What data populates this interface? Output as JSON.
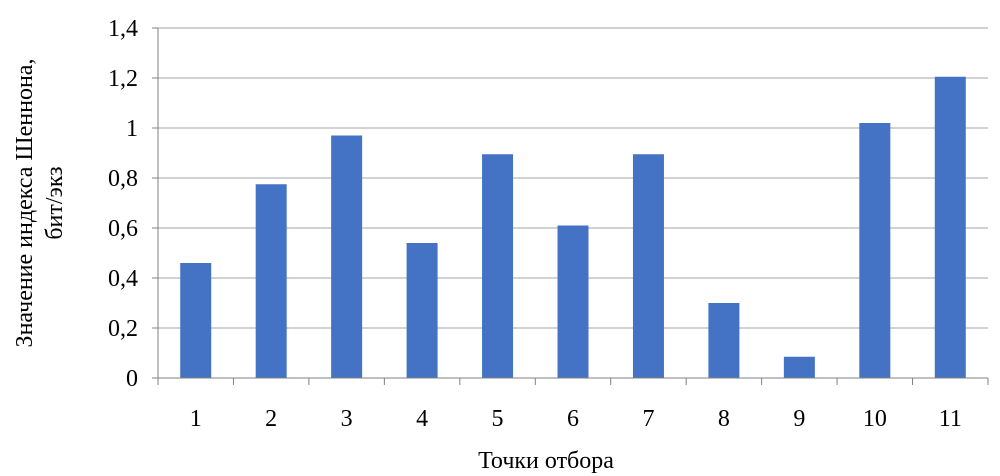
{
  "chart_data": {
    "type": "bar",
    "categories": [
      "1",
      "2",
      "3",
      "4",
      "5",
      "6",
      "7",
      "8",
      "9",
      "10",
      "11"
    ],
    "values": [
      0.46,
      0.775,
      0.97,
      0.54,
      0.895,
      0.61,
      0.895,
      0.3,
      0.085,
      1.02,
      1.205
    ],
    "xlabel": "Точки отбора",
    "ylabel_line1": "Значение индекса Шеннона,",
    "ylabel_line2": "бит/экз",
    "ylim": [
      0,
      1.4
    ],
    "yticks": [
      "0",
      "0,2",
      "0,4",
      "0,6",
      "0,8",
      "1",
      "1,2",
      "1,4"
    ],
    "grid": true,
    "legend": "none",
    "bar_color": "#4472C4",
    "grid_color": "#A6A6A6",
    "axis_color": "#808080"
  }
}
